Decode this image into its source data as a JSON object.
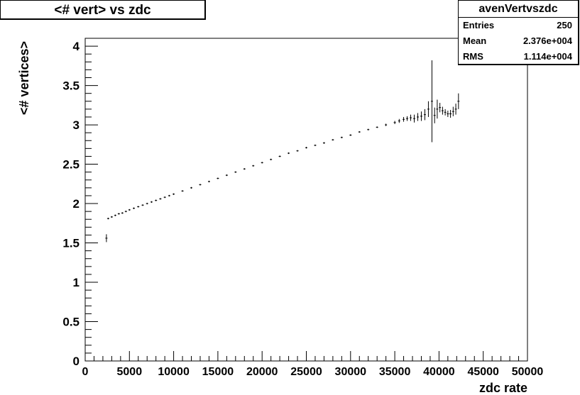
{
  "chart_data": {
    "type": "scatter",
    "title": "<# vert> vs zdc",
    "xlabel": "zdc rate",
    "ylabel": "<# vertices>",
    "xlim": [
      0,
      50000
    ],
    "ylim": [
      0,
      4.1
    ],
    "xticks": [
      0,
      5000,
      10000,
      15000,
      20000,
      25000,
      30000,
      35000,
      40000,
      45000,
      50000
    ],
    "xtick_labels": [
      "0",
      "5000",
      "10000",
      "15000",
      "20000",
      "25000",
      "30000",
      "35000",
      "40000",
      "45000",
      "50000"
    ],
    "yticks": [
      0,
      0.5,
      1,
      1.5,
      2,
      2.5,
      3,
      3.5,
      4
    ],
    "ytick_labels": [
      "0",
      "0.5",
      "1",
      "1.5",
      "2",
      "2.5",
      "3",
      "3.5",
      "4"
    ],
    "grid": false,
    "stats": {
      "name": "avenVertvszdc",
      "rows": [
        {
          "label": "Entries",
          "value": "250"
        },
        {
          "label": "Mean",
          "value": "2.376e+004"
        },
        {
          "label": "RMS",
          "value": "1.114e+004"
        }
      ]
    },
    "series": [
      {
        "x": [
          2400,
          2600,
          3000,
          3400,
          3800,
          4200,
          4600,
          5000,
          5500,
          6000,
          6500,
          7000,
          7500,
          8000,
          8500,
          9000,
          9500,
          10000,
          11000,
          12000,
          13000,
          14000,
          15000,
          16000,
          17000,
          18000,
          19000,
          20000,
          21000,
          22000,
          23000,
          24000,
          25000,
          26000,
          27000,
          28000,
          29000,
          30000,
          31000,
          32000,
          33000,
          34000,
          35000,
          35500,
          36000,
          36400,
          36800,
          37200,
          37600,
          38000,
          38400,
          38800,
          39200,
          39500,
          39800,
          40100,
          40400,
          40700,
          41000,
          41300,
          41600,
          41900,
          42200
        ],
        "y": [
          1.56,
          1.81,
          1.83,
          1.85,
          1.87,
          1.88,
          1.9,
          1.92,
          1.94,
          1.96,
          1.98,
          2.0,
          2.02,
          2.04,
          2.06,
          2.08,
          2.1,
          2.12,
          2.16,
          2.2,
          2.24,
          2.28,
          2.32,
          2.36,
          2.4,
          2.44,
          2.48,
          2.52,
          2.56,
          2.6,
          2.64,
          2.67,
          2.71,
          2.74,
          2.77,
          2.81,
          2.84,
          2.87,
          2.91,
          2.94,
          2.97,
          3.0,
          3.03,
          3.05,
          3.07,
          3.08,
          3.09,
          3.08,
          3.1,
          3.11,
          3.13,
          3.2,
          3.3,
          3.12,
          3.2,
          3.22,
          3.18,
          3.16,
          3.14,
          3.14,
          3.17,
          3.2,
          3.3
        ],
        "yerr": [
          0.05,
          0.01,
          0.01,
          0.01,
          0.01,
          0.01,
          0.01,
          0.01,
          0.01,
          0.01,
          0.01,
          0.01,
          0.01,
          0.01,
          0.01,
          0.01,
          0.01,
          0.01,
          0.01,
          0.01,
          0.01,
          0.01,
          0.01,
          0.01,
          0.01,
          0.01,
          0.01,
          0.01,
          0.01,
          0.01,
          0.01,
          0.01,
          0.01,
          0.01,
          0.01,
          0.01,
          0.01,
          0.01,
          0.01,
          0.01,
          0.01,
          0.015,
          0.02,
          0.025,
          0.03,
          0.03,
          0.04,
          0.05,
          0.05,
          0.06,
          0.07,
          0.1,
          0.52,
          0.1,
          0.12,
          0.06,
          0.05,
          0.04,
          0.04,
          0.05,
          0.06,
          0.07,
          0.1
        ]
      }
    ]
  }
}
